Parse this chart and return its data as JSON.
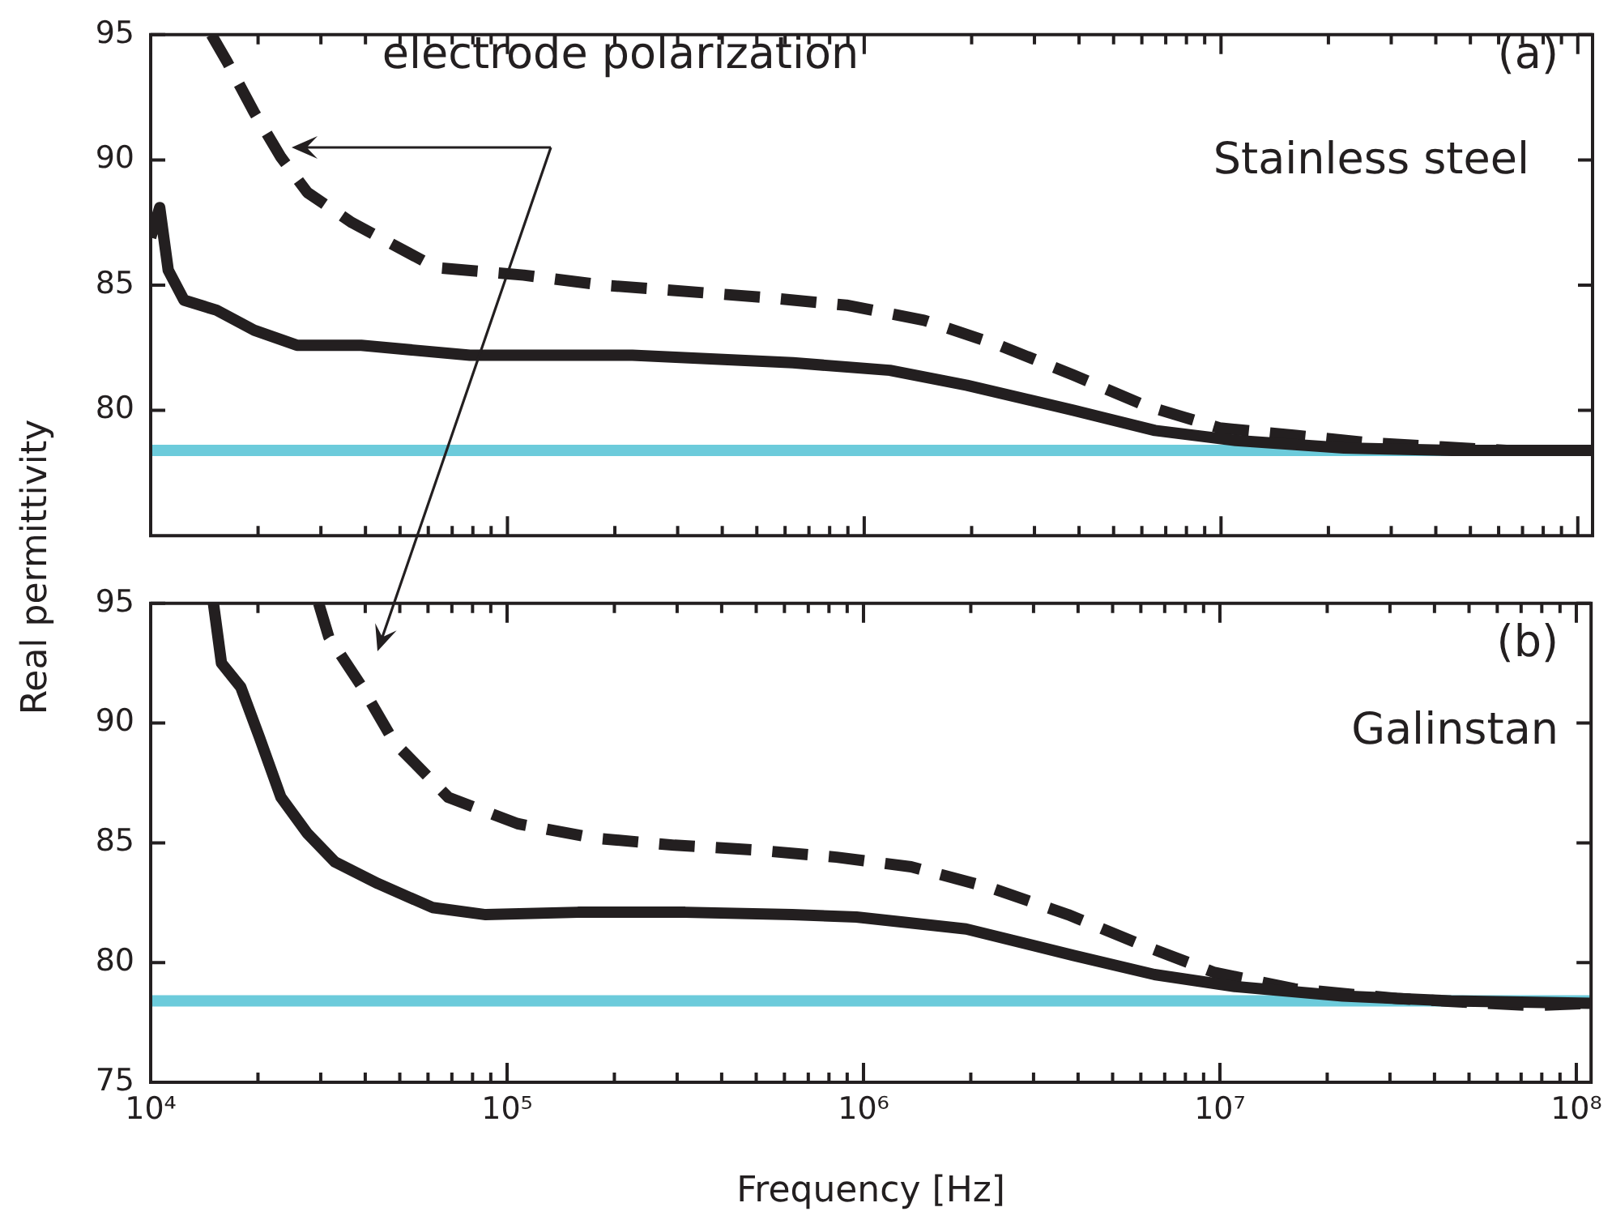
{
  "chart_data": [
    {
      "type": "line",
      "ylabel": "Real permittivity",
      "log": "x",
      "tick_labels": "y",
      "xlim": [
        10000,
        110000000
      ],
      "ylim": [
        75,
        95
      ],
      "yticks": [
        80,
        85,
        90,
        95
      ],
      "xticks": [
        {
          "value": 10000,
          "label": null
        },
        {
          "value": 20000,
          "label": null
        },
        {
          "value": 30000,
          "label": null
        },
        {
          "value": 40000,
          "label": null
        },
        {
          "value": 50000,
          "label": null
        },
        {
          "value": 60000,
          "label": null
        },
        {
          "value": 70000,
          "label": null
        },
        {
          "value": 80000,
          "label": null
        },
        {
          "value": 90000,
          "label": null
        },
        {
          "value": 100000,
          "label": null
        },
        {
          "value": 200000,
          "label": null
        },
        {
          "value": 300000,
          "label": null
        },
        {
          "value": 400000,
          "label": null
        },
        {
          "value": 500000,
          "label": null
        },
        {
          "value": 600000,
          "label": null
        },
        {
          "value": 700000,
          "label": null
        },
        {
          "value": 800000,
          "label": null
        },
        {
          "value": 900000,
          "label": null
        },
        {
          "value": 1000000,
          "label": null
        },
        {
          "value": 2000000,
          "label": null
        },
        {
          "value": 3000000,
          "label": null
        },
        {
          "value": 4000000,
          "label": null
        },
        {
          "value": 5000000,
          "label": null
        },
        {
          "value": 6000000,
          "label": null
        },
        {
          "value": 7000000,
          "label": null
        },
        {
          "value": 8000000,
          "label": null
        },
        {
          "value": 9000000,
          "label": null
        },
        {
          "value": 10000000,
          "label": null
        },
        {
          "value": 20000000,
          "label": null
        },
        {
          "value": 30000000,
          "label": null
        },
        {
          "value": 40000000,
          "label": null
        },
        {
          "value": 50000000,
          "label": null
        },
        {
          "value": 60000000,
          "label": null
        },
        {
          "value": 70000000,
          "label": null
        },
        {
          "value": 80000000,
          "label": null
        },
        {
          "value": 90000000,
          "label": null
        },
        {
          "value": 100000000,
          "label": null
        }
      ],
      "annotations": [
        "electrode polarization",
        "(a)",
        "Stainless steel"
      ],
      "ref_lines": [
        {
          "axis": "y",
          "value": 78.4,
          "color": "#6ccbdb"
        }
      ],
      "series": [
        {
          "color": "#231f20",
          "line_style": "solid",
          "x": [
            10000,
            10600,
            11200,
            12400,
            15300,
            19500,
            25700,
            38900,
            78500,
            224000,
            631000,
            1180000,
            1940000,
            3870000,
            6530000,
            11000000,
            22100000,
            44500000,
            110000000
          ],
          "values": [
            86.9,
            88.1,
            85.6,
            84.4,
            84.0,
            83.2,
            82.6,
            82.6,
            82.2,
            82.2,
            81.9,
            81.6,
            81.0,
            80.0,
            79.2,
            78.8,
            78.5,
            78.4,
            78.4
          ]
        },
        {
          "color": "#231f20",
          "line_style": "dashed",
          "x": [
            14800,
            16400,
            19500,
            23200,
            27500,
            36600,
            46600,
            63100,
            111000,
            186000,
            537000,
            891000,
            1470000,
            2390000,
            3870000,
            6110000,
            9910000,
            16200000,
            26300000,
            63100000,
            110000000
          ],
          "values": [
            95,
            93.9,
            91.9,
            90.1,
            88.7,
            87.5,
            86.7,
            85.7,
            85.4,
            85.0,
            84.5,
            84.2,
            83.6,
            82.6,
            81.4,
            80.2,
            79.3,
            79.0,
            78.7,
            78.4,
            78.4
          ]
        }
      ]
    },
    {
      "type": "line",
      "xlabel": "Frequency [Hz]",
      "log": "x",
      "xlim": [
        10000,
        110000000
      ],
      "ylim": [
        75,
        95
      ],
      "yticks": [
        75,
        80,
        85,
        90,
        95
      ],
      "xticks": [
        {
          "value": 10000,
          "label": "10⁴"
        },
        {
          "value": 20000,
          "label": null
        },
        {
          "value": 30000,
          "label": null
        },
        {
          "value": 40000,
          "label": null
        },
        {
          "value": 50000,
          "label": null
        },
        {
          "value": 60000,
          "label": null
        },
        {
          "value": 70000,
          "label": null
        },
        {
          "value": 80000,
          "label": null
        },
        {
          "value": 90000,
          "label": null
        },
        {
          "value": 100000,
          "label": "10⁵"
        },
        {
          "value": 200000,
          "label": null
        },
        {
          "value": 300000,
          "label": null
        },
        {
          "value": 400000,
          "label": null
        },
        {
          "value": 500000,
          "label": null
        },
        {
          "value": 600000,
          "label": null
        },
        {
          "value": 700000,
          "label": null
        },
        {
          "value": 800000,
          "label": null
        },
        {
          "value": 900000,
          "label": null
        },
        {
          "value": 1000000,
          "label": "10⁶"
        },
        {
          "value": 2000000,
          "label": null
        },
        {
          "value": 3000000,
          "label": null
        },
        {
          "value": 4000000,
          "label": null
        },
        {
          "value": 5000000,
          "label": null
        },
        {
          "value": 6000000,
          "label": null
        },
        {
          "value": 7000000,
          "label": null
        },
        {
          "value": 8000000,
          "label": null
        },
        {
          "value": 9000000,
          "label": null
        },
        {
          "value": 10000000,
          "label": "10⁷"
        },
        {
          "value": 20000000,
          "label": null
        },
        {
          "value": 30000000,
          "label": null
        },
        {
          "value": 40000000,
          "label": null
        },
        {
          "value": 50000000,
          "label": null
        },
        {
          "value": 60000000,
          "label": null
        },
        {
          "value": 70000000,
          "label": null
        },
        {
          "value": 80000000,
          "label": null
        },
        {
          "value": 90000000,
          "label": null
        },
        {
          "value": 100000000,
          "label": "10⁸"
        }
      ],
      "annotations": [
        "(b)",
        "Galinstan"
      ],
      "ref_lines": [
        {
          "axis": "y",
          "value": 78.4,
          "color": "#6ccbdb"
        }
      ],
      "series": [
        {
          "color": "#231f20",
          "line_style": "solid",
          "x": [
            15000,
            15800,
            17900,
            20200,
            23200,
            27500,
            32900,
            43400,
            61700,
            87100,
            158000,
            316000,
            631000,
            955000,
            1940000,
            3880000,
            6550000,
            11000000,
            22100000,
            44500000,
            110000000
          ],
          "values": [
            95,
            92.5,
            91.5,
            89.4,
            86.9,
            85.4,
            84.2,
            83.3,
            82.3,
            82.0,
            82.1,
            82.1,
            82.0,
            81.9,
            81.4,
            80.3,
            79.5,
            79.0,
            78.6,
            78.4,
            78.3
          ]
        },
        {
          "color": "#231f20",
          "line_style": "dashed",
          "x": [
            29600,
            31600,
            39200,
            48200,
            68400,
            107000,
            175000,
            295000,
            498000,
            840000,
            1360000,
            2300000,
            3750000,
            5890000,
            9590000,
            16200000,
            31300000,
            75000000,
            110000000
          ],
          "values": [
            95,
            93.6,
            91.5,
            89.2,
            86.9,
            85.8,
            85.2,
            84.9,
            84.7,
            84.4,
            84.0,
            83.1,
            82.0,
            80.8,
            79.6,
            78.9,
            78.5,
            78.2,
            78.3
          ]
        }
      ]
    }
  ]
}
